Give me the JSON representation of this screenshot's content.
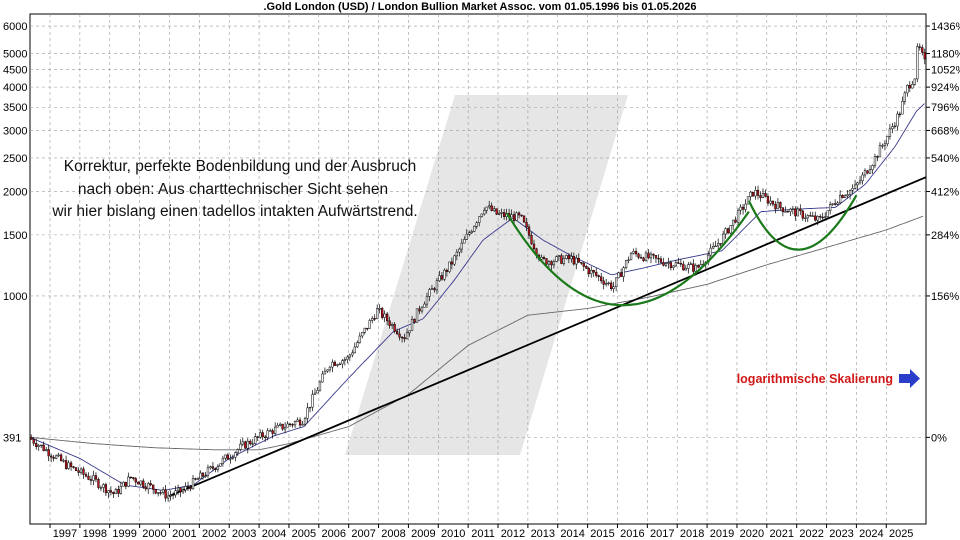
{
  "chart_data": {
    "type": "candlestick",
    "title": ".Gold London (USD) / London Bullion Market Assoc. vom 01.05.1996 bis 01.05.2026",
    "y_scale": "log",
    "ylim": [
      220,
      6500
    ],
    "xlim": [
      1996.33,
      2026.33
    ],
    "left_ticks": [
      "391",
      "1000",
      "1500",
      "2000",
      "2500",
      "3000",
      "3500",
      "4000",
      "4500",
      "5000",
      "6000"
    ],
    "left_tick_values": [
      391,
      1000,
      1500,
      2000,
      2500,
      3000,
      3500,
      4000,
      4500,
      5000,
      6000
    ],
    "right_ticks": [
      "0%",
      "156%",
      "284%",
      "412%",
      "540%",
      "668%",
      "796%",
      "924%",
      "1052%",
      "1180%",
      "1436%"
    ],
    "right_tick_values": [
      391,
      1000,
      1500,
      2000,
      2500,
      3000,
      3500,
      4000,
      4500,
      5000,
      6000
    ],
    "x_ticks": [
      "1997",
      "1998",
      "1999",
      "2000",
      "2001",
      "2002",
      "2003",
      "2004",
      "2005",
      "2006",
      "2007",
      "2008",
      "2009",
      "2010",
      "2011",
      "2012",
      "2013",
      "2014",
      "2015",
      "2016",
      "2017",
      "2018",
      "2019",
      "2020",
      "2021",
      "2022",
      "2023",
      "2024",
      "2025"
    ],
    "grid": true,
    "price_path": [
      [
        1996.33,
        391
      ],
      [
        1997.0,
        355
      ],
      [
        1997.6,
        325
      ],
      [
        1998.5,
        295
      ],
      [
        1999.2,
        268
      ],
      [
        1999.75,
        300
      ],
      [
        2000.4,
        282
      ],
      [
        2001.0,
        265
      ],
      [
        2001.5,
        275
      ],
      [
        2002.5,
        320
      ],
      [
        2003.5,
        370
      ],
      [
        2004.5,
        410
      ],
      [
        2005.5,
        440
      ],
      [
        2006.4,
        640
      ],
      [
        2007.0,
        660
      ],
      [
        2008.0,
        910
      ],
      [
        2008.9,
        760
      ],
      [
        2009.5,
        950
      ],
      [
        2010.5,
        1250
      ],
      [
        2011.6,
        1820
      ],
      [
        2012.0,
        1720
      ],
      [
        2012.8,
        1680
      ],
      [
        2013.5,
        1260
      ],
      [
        2014.5,
        1280
      ],
      [
        2015.9,
        1060
      ],
      [
        2016.5,
        1330
      ],
      [
        2017.5,
        1260
      ],
      [
        2018.7,
        1200
      ],
      [
        2019.5,
        1450
      ],
      [
        2020.6,
        2000
      ],
      [
        2021.5,
        1800
      ],
      [
        2022.8,
        1650
      ],
      [
        2023.5,
        1950
      ],
      [
        2024.0,
        2050
      ],
      [
        2024.6,
        2450
      ],
      [
        2025.0,
        2800
      ],
      [
        2025.5,
        3400
      ],
      [
        2025.75,
        4000
      ],
      [
        2026.0,
        4300
      ],
      [
        2026.1,
        5300
      ],
      [
        2026.33,
        4700
      ]
    ],
    "moving_average_short": [
      [
        1996.33,
        391
      ],
      [
        1998.0,
        340
      ],
      [
        1999.5,
        285
      ],
      [
        2000.8,
        275
      ],
      [
        2001.8,
        285
      ],
      [
        2003.0,
        340
      ],
      [
        2004.5,
        395
      ],
      [
        2005.5,
        420
      ],
      [
        2007.0,
        580
      ],
      [
        2008.5,
        790
      ],
      [
        2009.5,
        860
      ],
      [
        2010.5,
        1100
      ],
      [
        2011.5,
        1450
      ],
      [
        2012.5,
        1680
      ],
      [
        2013.5,
        1450
      ],
      [
        2014.5,
        1300
      ],
      [
        2015.8,
        1150
      ],
      [
        2016.8,
        1200
      ],
      [
        2018.0,
        1270
      ],
      [
        2019.5,
        1350
      ],
      [
        2020.8,
        1750
      ],
      [
        2022.0,
        1780
      ],
      [
        2023.3,
        1800
      ],
      [
        2024.3,
        2100
      ],
      [
        2025.3,
        2700
      ],
      [
        2026.0,
        3400
      ],
      [
        2026.3,
        3600
      ]
    ],
    "moving_average_long": [
      [
        1996.33,
        391
      ],
      [
        1998.5,
        375
      ],
      [
        2000.5,
        365
      ],
      [
        2002.5,
        360
      ],
      [
        2004.0,
        360
      ],
      [
        2005.0,
        375
      ],
      [
        2007.0,
        420
      ],
      [
        2009.0,
        520
      ],
      [
        2011.0,
        720
      ],
      [
        2013.0,
        880
      ],
      [
        2015.0,
        920
      ],
      [
        2017.0,
        990
      ],
      [
        2019.0,
        1080
      ],
      [
        2021.0,
        1230
      ],
      [
        2023.0,
        1380
      ],
      [
        2025.0,
        1550
      ],
      [
        2026.25,
        1700
      ]
    ],
    "trendline": [
      [
        2001.0,
        265
      ],
      [
        2026.33,
        2200
      ]
    ],
    "arcs": [
      {
        "from": [
          2012.3,
          1730
        ],
        "to": [
          2020.4,
          1750
        ],
        "bottom": [
          2016.2,
          940
        ]
      },
      {
        "from": [
          2020.4,
          1880
        ],
        "to": [
          2024.0,
          1950
        ],
        "bottom": [
          2022.1,
          1360
        ]
      }
    ],
    "annotation": [
      "Korrektur, perfekte Bodenbildung und der Ausbruch",
      "nach oben: Aus charttechnischer Sicht sehen",
      "wir hier bislang einen tadellos intakten Aufwärtstrend."
    ],
    "scale_note": "logarithmische Skalierung",
    "colors": {
      "up": "#ffffff",
      "down": "#c0151b",
      "trend": "#000000",
      "arcs": "#1a7a1a",
      "ma_short": "#3a3a8c",
      "ma_long": "#666666",
      "note": "#d01818",
      "arrow": "#2a3ec9",
      "watermark": "#e6e6e6"
    }
  }
}
